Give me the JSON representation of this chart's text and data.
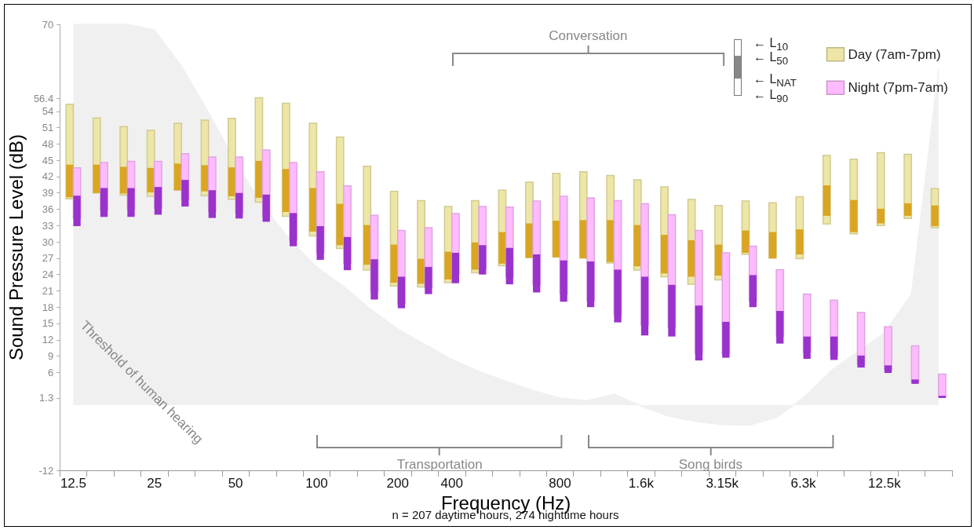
{
  "chart_data": {
    "type": "bar",
    "xlabel": "Frequency (Hz)",
    "ylabel": "Sound Pressure Level (dB)",
    "categories": [
      "12.5",
      null,
      null,
      "25",
      null,
      null,
      "50",
      null,
      null,
      "100",
      null,
      null,
      "200",
      null,
      "400",
      null,
      null,
      null,
      "800",
      null,
      null,
      "1.6k",
      null,
      null,
      "3.15k",
      null,
      null,
      "6.3k",
      null,
      null,
      "12.5k",
      null,
      null
    ],
    "ylim": [
      -12,
      70
    ],
    "yticks": [
      -12,
      1.3,
      6,
      9,
      12,
      15,
      18,
      21,
      24,
      27,
      30,
      33,
      36,
      39,
      42,
      45,
      48,
      51,
      54,
      56.4,
      70
    ],
    "grid": false,
    "legend": "top right",
    "series": [
      {
        "type": "area",
        "color": "#f0f0f0",
        "values": [
          70,
          70,
          70,
          69.0,
          62.3,
          53.8,
          44.6,
          36.8,
          30.4,
          25.4,
          21.8,
          17.6,
          14.0,
          11.2,
          8.4,
          6.2,
          4.4,
          2.7,
          1.3,
          0.8,
          2.0,
          -0.2,
          -2.0,
          -3.0,
          -3.6,
          -3.7,
          -2.3,
          1.3,
          6.2,
          9.8,
          13.3,
          20.4,
          61.6
        ]
      },
      {
        "name": "Day (7am-7pm)",
        "color": "#ede6a6",
        "base": [
          37.9,
          39.0,
          38.6,
          38.4,
          39.5,
          38.5,
          37.8,
          37.3,
          34.7,
          31.1,
          28.8,
          24.8,
          21.9,
          21.7,
          22.5,
          24.3,
          25.6,
          27.1,
          27.2,
          27.0,
          26.1,
          24.8,
          23.6,
          22.2,
          23.0,
          27.7,
          27.0,
          26.9,
          33.3,
          31.5,
          33.0,
          34.3,
          32.6
        ],
        "values": [
          17.4,
          13.8,
          12.6,
          12.1,
          12.3,
          13.9,
          14.9,
          19.2,
          20.8,
          20.7,
          20.5,
          19.1,
          17.4,
          15.9,
          14.0,
          13.3,
          13.9,
          13.9,
          15.4,
          15.9,
          16.1,
          16.6,
          16.5,
          15.6,
          13.7,
          9.8,
          10.2,
          11.4,
          12.6,
          13.7,
          13.4,
          11.8,
          7.2
        ]
      },
      {
        "color": "#daa520",
        "base": [
          38.2,
          39.0,
          38.9,
          39.1,
          39.5,
          39.3,
          38.4,
          38.1,
          35.5,
          31.9,
          29.4,
          25.8,
          22.5,
          22.3,
          23.1,
          24.9,
          26.0,
          27.1,
          27.2,
          27.0,
          26.3,
          25.5,
          24.2,
          23.6,
          23.8,
          28.0,
          27.0,
          27.7,
          34.8,
          31.8,
          33.4,
          34.8,
          32.9
        ],
        "values": [
          6.0,
          5.2,
          4.9,
          4.5,
          4.9,
          4.8,
          5.3,
          6.8,
          7.9,
          8.0,
          7.6,
          7.3,
          7.0,
          4.6,
          5.1,
          5.0,
          5.8,
          6.3,
          6.7,
          7.0,
          7.7,
          7.6,
          7.1,
          6.7,
          5.7,
          4.1,
          4.8,
          4.6,
          5.6,
          5.9,
          2.7,
          2.3,
          3.8
        ]
      },
      {
        "name": "Night (7pm-7am)",
        "color": "#ffbbff",
        "base": [
          34.3,
          35.8,
          36.0,
          36.2,
          37.8,
          35.6,
          35.4,
          34.7,
          30.3,
          28.0,
          26.1,
          20.8,
          18.6,
          21.6,
          24.1,
          25.1,
          23.5,
          22.1,
          20.4,
          19.2,
          16.6,
          14.7,
          14.3,
          9.4,
          9.4,
          19.1,
          12.7,
          9.7,
          9.1,
          7.5,
          6.5,
          4.3,
          1.5
        ],
        "values": [
          9.3,
          8.8,
          8.8,
          8.6,
          8.4,
          10.0,
          10.2,
          12.2,
          14.3,
          14.9,
          14.2,
          14.1,
          13.5,
          11.0,
          11.1,
          11.4,
          12.9,
          15.4,
          18.0,
          18.9,
          21.0,
          22.3,
          20.7,
          22.7,
          18.6,
          10.1,
          12.2,
          10.7,
          10.2,
          9.5,
          7.9,
          6.6,
          4.2
        ]
      },
      {
        "color": "#9933cc",
        "base": [
          32.9,
          34.6,
          34.6,
          35.0,
          36.5,
          34.4,
          34.3,
          33.7,
          29.2,
          26.7,
          24.8,
          19.4,
          17.8,
          20.4,
          22.4,
          24.0,
          22.2,
          20.7,
          19.0,
          18.0,
          15.2,
          12.8,
          12.6,
          8.2,
          8.7,
          18.0,
          11.3,
          8.5,
          8.3,
          6.9,
          5.9,
          3.9,
          1.3
        ],
        "values": [
          5.6,
          5.3,
          5.3,
          5.1,
          4.9,
          5.1,
          4.7,
          5.0,
          6.1,
          6.2,
          6.1,
          7.4,
          5.8,
          5.0,
          5.6,
          5.4,
          6.7,
          7.0,
          7.6,
          8.4,
          9.7,
          10.8,
          9.5,
          10.1,
          6.6,
          5.9,
          6.0,
          4.1,
          4.3,
          2.2,
          1.4,
          0.8,
          0.4
        ]
      }
    ],
    "annotations": [
      "Conversation",
      "Transportation",
      "Song birds",
      "n = 207 daytime hours, 274 nighttime hours",
      "← L$_{10}$",
      "← L$_{50}$",
      "← L$_{NAT}$",
      "← L$_{90}$",
      "Threshold of human hearing"
    ]
  }
}
